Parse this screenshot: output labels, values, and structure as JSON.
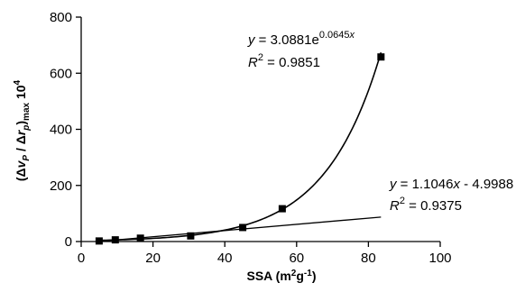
{
  "chart_data": {
    "type": "scatter",
    "title": "",
    "xlabel": "SSA (m²g⁻¹)",
    "ylabel": "(Δv_P / Δr_p)_max 10⁴",
    "xlim": [
      0,
      100
    ],
    "ylim": [
      0,
      800
    ],
    "xticks": [
      0,
      20,
      40,
      60,
      80,
      100
    ],
    "yticks": [
      0,
      200,
      400,
      600,
      800
    ],
    "grid": false,
    "legend": "none",
    "series": [
      {
        "marker": "square",
        "x": [
          5,
          9.5,
          16.5,
          30.5,
          45,
          56,
          83.5
        ],
        "y": [
          2,
          6,
          12,
          20,
          50,
          117,
          658
        ]
      }
    ],
    "trendlines": [
      {
        "type": "exponential",
        "a": 3.0881,
        "b": 0.0645,
        "x_range": [
          5,
          83.5
        ],
        "equation": {
          "lhs": "y",
          "rhs": " = 3.0881e",
          "exp": "0.0645",
          "exp_var": "x"
        },
        "r2": {
          "label": "R",
          "sup": "2",
          "value": " = 0.9851"
        }
      },
      {
        "type": "linear",
        "slope": 1.1046,
        "intercept": -4.9988,
        "x_range": [
          5,
          83.5
        ],
        "equation": {
          "lhs": "y",
          "rhs": " = 1.1046",
          "var": "x",
          "rest": " - 4.9988"
        },
        "r2": {
          "label": "R",
          "sup": "2",
          "value": " = 0.9375"
        }
      }
    ],
    "axis_titles": {
      "x_main": "SSA (m",
      "x_sup1": "2",
      "x_mid": "g",
      "x_sup2": "-1",
      "x_end": ")",
      "y_open": "(Δ",
      "y_v": "v",
      "y_vsub": "P",
      "y_slash": " / Δ",
      "y_r": "r",
      "y_rsub": "p",
      "y_close": ")",
      "y_max": "max",
      "y_tail": " 10",
      "y_sup": "4"
    }
  }
}
